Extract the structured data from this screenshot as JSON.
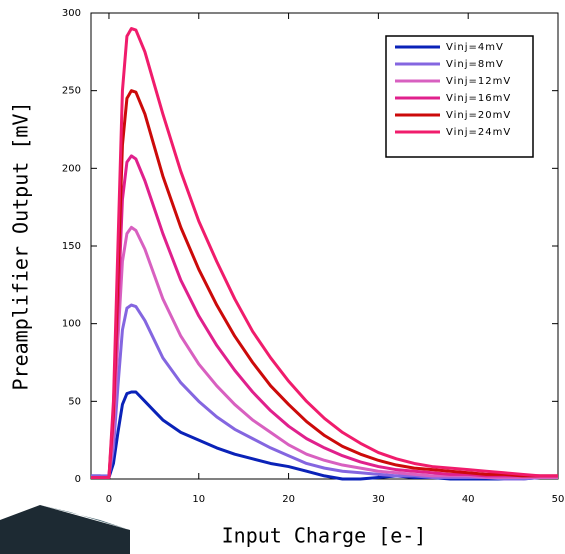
{
  "chart_data": {
    "type": "line",
    "xlabel": "Input Charge [e-]",
    "ylabel": "Preamplifier  Output [mV]",
    "x": [
      -2,
      -1,
      0,
      0.5,
      1,
      1.5,
      2,
      2.5,
      3,
      4,
      5,
      6,
      8,
      10,
      12,
      14,
      16,
      18,
      20,
      22,
      24,
      26,
      28,
      30,
      32,
      34,
      36,
      38,
      40,
      42,
      44,
      46,
      48,
      50
    ],
    "series": [
      {
        "name": "Vinj=4mV",
        "color": "#0a22b8",
        "values": [
          2,
          2,
          1,
          10,
          30,
          48,
          55,
          56,
          56,
          50,
          44,
          38,
          30,
          25,
          20,
          16,
          13,
          10,
          8,
          5,
          2,
          0,
          0,
          1,
          2,
          1,
          1,
          0,
          0,
          0,
          0,
          0,
          1,
          1
        ]
      },
      {
        "name": "Vinj=8mV",
        "color": "#8466e0",
        "values": [
          2,
          2,
          2,
          20,
          60,
          96,
          110,
          112,
          111,
          102,
          90,
          78,
          62,
          50,
          40,
          32,
          26,
          20,
          15,
          10,
          7,
          5,
          4,
          3,
          2,
          2,
          1,
          1,
          1,
          1,
          0,
          0,
          1,
          1
        ]
      },
      {
        "name": "Vinj=12mV",
        "color": "#d860c0",
        "values": [
          1,
          1,
          1,
          30,
          90,
          140,
          158,
          162,
          160,
          148,
          132,
          116,
          92,
          74,
          60,
          48,
          38,
          30,
          22,
          16,
          12,
          9,
          7,
          5,
          4,
          3,
          2,
          2,
          2,
          1,
          1,
          1,
          1,
          1
        ]
      },
      {
        "name": "Vinj=16mV",
        "color": "#e0208c",
        "values": [
          1,
          1,
          1,
          40,
          110,
          180,
          204,
          208,
          206,
          192,
          175,
          158,
          128,
          105,
          86,
          70,
          56,
          44,
          34,
          26,
          20,
          15,
          11,
          8,
          6,
          5,
          4,
          3,
          3,
          2,
          2,
          2,
          2,
          2
        ]
      },
      {
        "name": "Vinj=20mV",
        "color": "#cc0a0a",
        "values": [
          1,
          1,
          1,
          45,
          130,
          215,
          245,
          250,
          249,
          235,
          215,
          195,
          162,
          135,
          112,
          92,
          75,
          60,
          48,
          37,
          28,
          21,
          16,
          12,
          9,
          7,
          6,
          5,
          4,
          3,
          3,
          2,
          2,
          2
        ]
      },
      {
        "name": "Vinj=24mV",
        "color": "#f01c6c",
        "values": [
          1,
          1,
          1,
          50,
          150,
          250,
          285,
          290,
          289,
          275,
          255,
          235,
          198,
          166,
          140,
          116,
          95,
          78,
          63,
          50,
          39,
          30,
          23,
          17,
          13,
          10,
          8,
          7,
          6,
          5,
          4,
          3,
          2,
          2
        ]
      }
    ],
    "xlim": [
      -2,
      50
    ],
    "ylim": [
      0,
      300
    ],
    "xticks": [
      0,
      10,
      20,
      30,
      40,
      50
    ],
    "yticks": [
      0,
      50,
      100,
      150,
      200,
      250,
      300
    ],
    "legend": "upper right"
  }
}
